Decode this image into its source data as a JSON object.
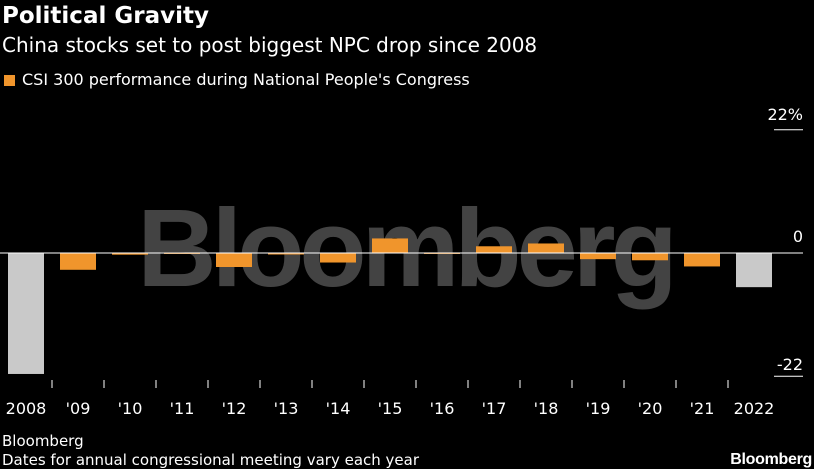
{
  "header": {
    "title": "Political Gravity",
    "subtitle": "China stocks set to post biggest NPC drop since 2008"
  },
  "footer": {
    "source": "Bloomberg",
    "note": "Dates for annual congressional meeting vary each year",
    "brand": "Bloomberg"
  },
  "watermark": "Bloomberg",
  "colors": {
    "background": "#000000",
    "series": "#f0952c",
    "highlight": "#c9c9c9",
    "zero_line": "#ffffff",
    "text": "#ffffff",
    "watermark": "#7a7a7a"
  },
  "chart_data": {
    "type": "bar",
    "title": "Political Gravity",
    "subtitle": "China stocks set to post biggest NPC drop since 2008",
    "categories": [
      "2008",
      "'09",
      "'10",
      "'11",
      "'12",
      "'13",
      "'14",
      "'15",
      "'16",
      "'17",
      "'18",
      "'19",
      "'20",
      "'21",
      "2022"
    ],
    "series": [
      {
        "name": "CSI 300 performance during National People's Congress",
        "values": [
          -21.6,
          -3.0,
          -0.3,
          0.1,
          -2.5,
          -0.1,
          -1.7,
          2.6,
          0.1,
          1.2,
          1.7,
          -1.1,
          -1.3,
          -2.4,
          -6.1
        ]
      }
    ],
    "highlight_categories": [
      "2008",
      "2022"
    ],
    "y_ticks": [
      {
        "value": 22,
        "label": "22%"
      },
      {
        "value": 0,
        "label": "0"
      },
      {
        "value": -22,
        "label": "-22"
      }
    ],
    "ylim": [
      -22,
      22
    ],
    "xlabel": "",
    "ylabel": "",
    "legend_position": "top-left",
    "grid": false
  }
}
